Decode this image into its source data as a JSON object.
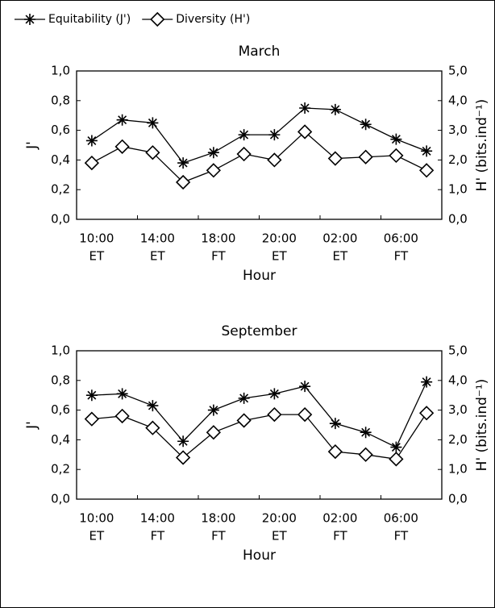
{
  "chart_data": [
    {
      "type": "line",
      "title": "March",
      "x_label": "Hour",
      "y_label": "J'",
      "y2_label": "H' (bits.ind⁻¹)",
      "categories": [
        "10:00",
        null,
        "14:00",
        null,
        "18:00",
        null,
        "20:00",
        null,
        "02:00",
        null,
        "06:00",
        null
      ],
      "category_groups": [
        "ET",
        null,
        "ET",
        null,
        "FT",
        null,
        "ET",
        null,
        "ET",
        null,
        "FT",
        null
      ],
      "series": [
        {
          "name": "Equitability (J')",
          "color": "#000000",
          "marker": "asterisk",
          "values": [
            0.53,
            0.67,
            0.65,
            0.38,
            0.45,
            0.57,
            0.57,
            0.75,
            0.74,
            0.64,
            0.54,
            0.46
          ]
        },
        {
          "name": "Diversity (H')",
          "color": "#000000",
          "marker": "diamond",
          "axis": "y2",
          "values": [
            1.9,
            2.45,
            2.25,
            1.25,
            1.65,
            2.2,
            2.0,
            2.95,
            2.05,
            2.1,
            2.15,
            1.65
          ]
        }
      ],
      "ylim": [
        0,
        1
      ],
      "yticks": [
        {
          "value": 0,
          "label": "0,0"
        },
        {
          "value": 0.2,
          "label": "0,2"
        },
        {
          "value": 0.4,
          "label": "0,4"
        },
        {
          "value": 0.6,
          "label": "0,6"
        },
        {
          "value": 0.8,
          "label": "0,8"
        },
        {
          "value": 1,
          "label": "1,0"
        }
      ],
      "y2lim": [
        0,
        5
      ],
      "y2ticks": [
        {
          "value": 0,
          "label": "0,0"
        },
        {
          "value": 1,
          "label": "1,0"
        },
        {
          "value": 2,
          "label": "2,0"
        },
        {
          "value": 3,
          "label": "3,0"
        },
        {
          "value": 4,
          "label": "4,0"
        },
        {
          "value": 5,
          "label": "5,0"
        }
      ]
    },
    {
      "type": "line",
      "title": "September",
      "x_label": "Hour",
      "y_label": "J'",
      "y2_label": "H' (bits.ind⁻¹)",
      "categories": [
        "10:00",
        null,
        "14:00",
        null,
        "18:00",
        null,
        "20:00",
        null,
        "02:00",
        null,
        "06:00",
        null
      ],
      "category_groups": [
        "ET",
        null,
        "FT",
        null,
        "FT",
        null,
        "ET",
        null,
        "FT",
        null,
        "FT",
        null
      ],
      "series": [
        {
          "color": "#000000",
          "marker": "asterisk",
          "values": [
            0.7,
            0.71,
            0.63,
            0.39,
            0.6,
            0.68,
            0.71,
            0.76,
            0.51,
            0.45,
            0.35,
            0.79
          ]
        },
        {
          "color": "#000000",
          "marker": "diamond",
          "axis": "y2",
          "values": [
            2.7,
            2.8,
            2.4,
            1.4,
            2.25,
            2.65,
            2.85,
            2.85,
            1.6,
            1.5,
            1.35,
            2.9
          ]
        }
      ],
      "ylim": [
        0,
        1
      ],
      "yticks": [
        {
          "value": 0,
          "label": "0,0"
        },
        {
          "value": 0.2,
          "label": "0,2"
        },
        {
          "value": 0.4,
          "label": "0,4"
        },
        {
          "value": 0.6,
          "label": "0,6"
        },
        {
          "value": 0.8,
          "label": "0,8"
        },
        {
          "value": 1,
          "label": "1,0"
        }
      ],
      "y2lim": [
        0,
        5
      ],
      "y2ticks": [
        {
          "value": 0,
          "label": "0,0"
        },
        {
          "value": 1,
          "label": "1,0"
        },
        {
          "value": 2,
          "label": "2,0"
        },
        {
          "value": 3,
          "label": "3,0"
        },
        {
          "value": 4,
          "label": "4,0"
        },
        {
          "value": 5,
          "label": "5,0"
        }
      ]
    }
  ]
}
